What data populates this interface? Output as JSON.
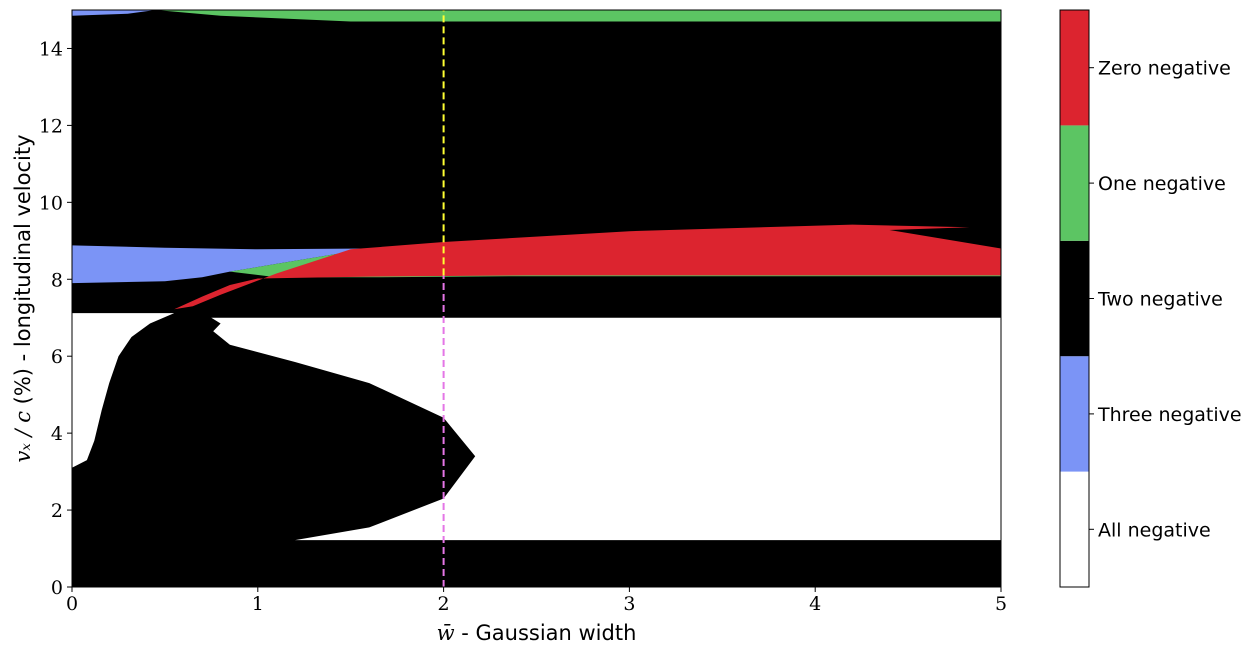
{
  "chart_data": {
    "type": "heatmap",
    "xlabel": {
      "math": "w̄",
      "text": " - Gaussian width"
    },
    "ylabel": {
      "math": "vₓ / c",
      "text": " (%) - longitudinal velocity"
    },
    "xlim": [
      0,
      5
    ],
    "ylim": [
      0,
      15
    ],
    "xticks": [
      0,
      1,
      2,
      3,
      4,
      5
    ],
    "yticks": [
      0,
      2,
      4,
      6,
      8,
      10,
      12,
      14
    ],
    "grid": false,
    "background_category": "Two negative",
    "categories": [
      {
        "label": "All negative",
        "color": "#ffffff"
      },
      {
        "label": "Three negative",
        "color": "#7b94f6"
      },
      {
        "label": "Two negative",
        "color": "#000000"
      },
      {
        "label": "One negative",
        "color": "#5cc563"
      },
      {
        "label": "Zero negative",
        "color": "#dc242f"
      }
    ],
    "regions": [
      {
        "category": "All negative",
        "polygon": [
          [
            0.0,
            3.1
          ],
          [
            0.08,
            3.3
          ],
          [
            0.12,
            3.8
          ],
          [
            0.16,
            4.6
          ],
          [
            0.2,
            5.3
          ],
          [
            0.25,
            6.0
          ],
          [
            0.32,
            6.5
          ],
          [
            0.42,
            6.85
          ],
          [
            0.55,
            7.12
          ],
          [
            0.0,
            7.12
          ]
        ]
      },
      {
        "category": "All negative",
        "polygon": [
          [
            0.75,
            7.0
          ],
          [
            5.0,
            7.0
          ],
          [
            5.0,
            1.22
          ],
          [
            1.2,
            1.22
          ],
          [
            1.6,
            1.55
          ],
          [
            2.0,
            2.3
          ],
          [
            2.17,
            3.4
          ],
          [
            2.0,
            4.4
          ],
          [
            1.6,
            5.3
          ],
          [
            1.2,
            5.85
          ],
          [
            0.85,
            6.3
          ],
          [
            0.76,
            6.65
          ],
          [
            0.8,
            6.85
          ]
        ]
      },
      {
        "category": "Three negative",
        "polygon": [
          [
            0.0,
            15.0
          ],
          [
            0.45,
            15.0
          ],
          [
            0.3,
            14.9
          ],
          [
            0.0,
            14.85
          ]
        ]
      },
      {
        "category": "One negative",
        "polygon": [
          [
            0.45,
            15.0
          ],
          [
            5.0,
            15.0
          ],
          [
            5.0,
            14.7
          ],
          [
            1.5,
            14.7
          ],
          [
            0.8,
            14.85
          ]
        ]
      },
      {
        "category": "Three negative",
        "polygon": [
          [
            0.0,
            8.88
          ],
          [
            0.5,
            8.82
          ],
          [
            1.0,
            8.78
          ],
          [
            1.6,
            8.8
          ],
          [
            1.1,
            8.4
          ],
          [
            0.85,
            8.2
          ],
          [
            0.7,
            8.05
          ],
          [
            0.5,
            7.95
          ],
          [
            0.0,
            7.9
          ]
        ]
      },
      {
        "category": "One negative",
        "polygon": [
          [
            0.85,
            8.2
          ],
          [
            1.1,
            8.4
          ],
          [
            1.6,
            8.8
          ],
          [
            5.0,
            8.8
          ],
          [
            5.0,
            8.08
          ],
          [
            2.4,
            8.08
          ],
          [
            1.6,
            8.05
          ],
          [
            1.1,
            8.05
          ]
        ]
      },
      {
        "category": "Zero negative",
        "polygon": [
          [
            0.55,
            7.22
          ],
          [
            0.7,
            7.55
          ],
          [
            0.85,
            7.85
          ],
          [
            1.0,
            8.02
          ],
          [
            1.6,
            8.07
          ],
          [
            2.45,
            8.1
          ],
          [
            3.0,
            8.1
          ],
          [
            5.0,
            8.1
          ],
          [
            5.0,
            8.8
          ],
          [
            4.4,
            9.28
          ],
          [
            4.83,
            9.35
          ],
          [
            4.2,
            9.42
          ],
          [
            3.0,
            9.25
          ],
          [
            2.0,
            8.97
          ],
          [
            1.5,
            8.78
          ],
          [
            1.1,
            8.15
          ],
          [
            0.8,
            7.6
          ],
          [
            0.65,
            7.3
          ]
        ]
      }
    ],
    "reference_lines": [
      {
        "x": 2.0,
        "y_from": 0,
        "y_to": 8.1,
        "color": "#e476e6",
        "style": "dashed"
      },
      {
        "x": 2.0,
        "y_from": 8.1,
        "y_to": 15,
        "color": "#ffff33",
        "style": "dashed"
      }
    ],
    "colorbar": {
      "orientation": "vertical",
      "position": "right"
    }
  }
}
